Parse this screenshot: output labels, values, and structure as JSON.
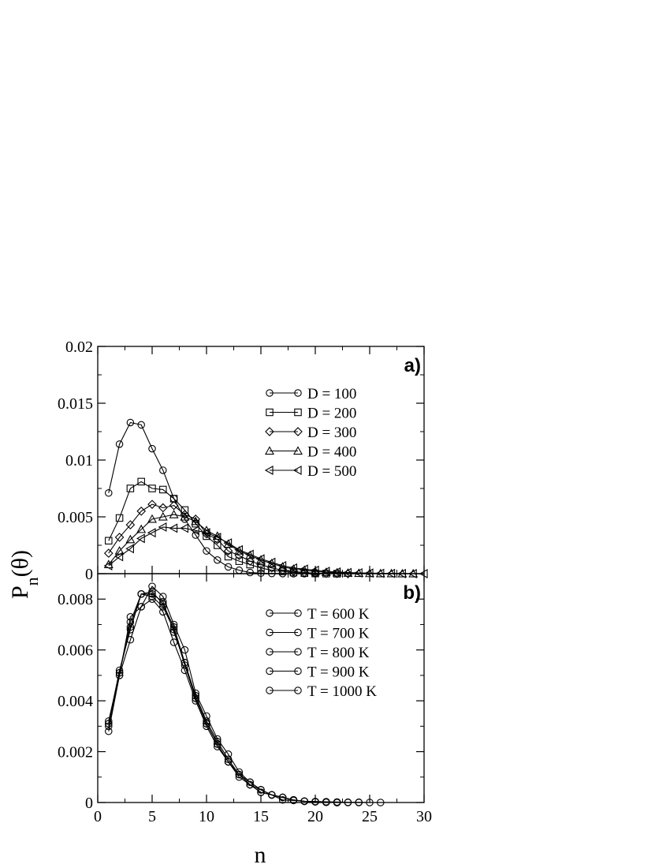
{
  "chart_data": [
    {
      "type": "line",
      "panel_label": "a)",
      "xlabel": "n",
      "ylabel": "P_n(θ)",
      "xlim": [
        0,
        30
      ],
      "ylim": [
        0,
        0.02
      ],
      "x_ticks": [
        0,
        5,
        10,
        15,
        20,
        25,
        30
      ],
      "x_tick_labels": [
        "",
        "",
        "",
        "",
        "",
        "",
        ""
      ],
      "y_ticks": [
        0,
        0.005,
        0.01,
        0.015,
        0.02
      ],
      "y_tick_labels": [
        "0",
        "0.005",
        "0.01",
        "0.015",
        "0.02"
      ],
      "grid": false,
      "legend_position": "top-right",
      "series": [
        {
          "name": "D = 100",
          "marker": "circle",
          "x": [
            1,
            2,
            3,
            4,
            5,
            6,
            7,
            8,
            9,
            10,
            11,
            12,
            13,
            14,
            15,
            16,
            17,
            18,
            19,
            20
          ],
          "y": [
            0.0071,
            0.0114,
            0.0133,
            0.0131,
            0.011,
            0.0091,
            0.0066,
            0.0048,
            0.0034,
            0.002,
            0.0012,
            0.0006,
            0.0003,
            0.0001,
            5e-05,
            2e-05,
            1e-05,
            0,
            0,
            0
          ]
        },
        {
          "name": "D = 200",
          "marker": "square",
          "x": [
            1,
            2,
            3,
            4,
            5,
            6,
            7,
            8,
            9,
            10,
            11,
            12,
            13,
            14,
            15,
            16,
            17,
            18,
            19,
            20,
            21,
            22
          ],
          "y": [
            0.0029,
            0.0049,
            0.0075,
            0.0081,
            0.0075,
            0.0074,
            0.0066,
            0.0056,
            0.0044,
            0.0033,
            0.0025,
            0.0015,
            0.0011,
            0.0008,
            0.0005,
            0.0003,
            0.0002,
            0.0001,
            5e-05,
            2e-05,
            1e-05,
            0
          ]
        },
        {
          "name": "D = 300",
          "marker": "diamond",
          "x": [
            1,
            2,
            3,
            4,
            5,
            6,
            7,
            8,
            9,
            10,
            11,
            12,
            13,
            14,
            15,
            16,
            17,
            18,
            19,
            20,
            21,
            22,
            23
          ],
          "y": [
            0.0018,
            0.0032,
            0.0043,
            0.0055,
            0.0061,
            0.0058,
            0.006,
            0.0052,
            0.0048,
            0.0035,
            0.003,
            0.002,
            0.0016,
            0.0011,
            0.0008,
            0.0005,
            0.0003,
            0.0002,
            0.0001,
            5e-05,
            2e-05,
            1e-05,
            0
          ]
        },
        {
          "name": "D = 400",
          "marker": "triangle-up",
          "x": [
            1,
            2,
            3,
            4,
            5,
            6,
            7,
            8,
            9,
            10,
            11,
            12,
            13,
            14,
            15,
            16,
            17,
            18,
            19,
            20,
            21,
            22,
            23,
            24,
            25,
            26,
            27,
            28,
            29
          ],
          "y": [
            0.0008,
            0.002,
            0.003,
            0.0039,
            0.0048,
            0.005,
            0.0052,
            0.005,
            0.0046,
            0.0038,
            0.0033,
            0.0026,
            0.002,
            0.0016,
            0.0012,
            0.0009,
            0.0006,
            0.0004,
            0.0003,
            0.0002,
            0.00012,
            8e-05,
            5e-05,
            3e-05,
            2e-05,
            1e-05,
            1e-05,
            0,
            0
          ]
        },
        {
          "name": "D = 500",
          "marker": "triangle-left",
          "x": [
            1,
            2,
            3,
            4,
            5,
            6,
            7,
            8,
            9,
            10,
            11,
            12,
            13,
            14,
            15,
            16,
            17,
            18,
            19,
            20,
            21,
            22,
            23,
            24,
            25,
            26,
            27,
            28,
            29,
            30
          ],
          "y": [
            0.0007,
            0.0015,
            0.0022,
            0.0031,
            0.0036,
            0.0041,
            0.004,
            0.004,
            0.0038,
            0.0036,
            0.0032,
            0.0027,
            0.0021,
            0.0017,
            0.0013,
            0.001,
            0.0007,
            0.0005,
            0.0004,
            0.0003,
            0.0002,
            0.00015,
            0.0001,
            7e-05,
            5e-05,
            3e-05,
            2e-05,
            1e-05,
            0,
            0
          ]
        }
      ]
    },
    {
      "type": "line",
      "panel_label": "b)",
      "xlabel": "n",
      "ylabel": "P_n(θ)",
      "xlim": [
        0,
        30
      ],
      "ylim": [
        0,
        0.009
      ],
      "x_ticks": [
        0,
        5,
        10,
        15,
        20,
        25,
        30
      ],
      "x_tick_labels": [
        "0",
        "5",
        "10",
        "15",
        "20",
        "25",
        "30"
      ],
      "y_ticks": [
        0,
        0.002,
        0.004,
        0.006,
        0.008
      ],
      "y_tick_labels": [
        "0",
        "0.002",
        "0.004",
        "0.006",
        "0.008"
      ],
      "grid": false,
      "legend_position": "top-right",
      "series": [
        {
          "name": "T = 600 K",
          "marker": "circle",
          "x": [
            1,
            2,
            3,
            4,
            5,
            6,
            7,
            8,
            9,
            10,
            11,
            12,
            13,
            14,
            15,
            16,
            17,
            18,
            19,
            20,
            21,
            22,
            23,
            24,
            25,
            26
          ],
          "y": [
            0.0028,
            0.005,
            0.0064,
            0.0077,
            0.0085,
            0.0081,
            0.007,
            0.006,
            0.0043,
            0.0034,
            0.0025,
            0.0019,
            0.0012,
            0.0008,
            0.0005,
            0.0003,
            0.0002,
            0.0001,
            5e-05,
            4e-05,
            3e-05,
            2e-05,
            1e-05,
            1e-05,
            0,
            0
          ]
        },
        {
          "name": "T = 700 K",
          "marker": "circle",
          "x": [
            1,
            2,
            3,
            4,
            5,
            6,
            7,
            8,
            9,
            10,
            11,
            12,
            13,
            14,
            15,
            16,
            17,
            18,
            19,
            20,
            21,
            22,
            23,
            24
          ],
          "y": [
            0.0031,
            0.0052,
            0.0068,
            0.0082,
            0.0083,
            0.0078,
            0.0069,
            0.0055,
            0.0042,
            0.0032,
            0.0024,
            0.0017,
            0.0011,
            0.0008,
            0.0005,
            0.0003,
            0.0002,
            0.0001,
            5e-05,
            3e-05,
            2e-05,
            1e-05,
            0,
            0
          ]
        },
        {
          "name": "T = 800 K",
          "marker": "circle",
          "x": [
            1,
            2,
            3,
            4,
            5,
            6,
            7,
            8,
            9,
            10,
            11,
            12,
            13,
            14,
            15,
            16,
            17,
            18,
            19,
            20,
            21,
            22
          ],
          "y": [
            0.0032,
            0.0051,
            0.0071,
            0.0082,
            0.0081,
            0.0077,
            0.0068,
            0.0054,
            0.0041,
            0.0031,
            0.0023,
            0.0016,
            0.0011,
            0.0007,
            0.0004,
            0.0003,
            0.0002,
            0.0001,
            5e-05,
            3e-05,
            1e-05,
            0
          ]
        },
        {
          "name": "T = 900 K",
          "marker": "circle",
          "x": [
            1,
            2,
            3,
            4,
            5,
            6,
            7,
            8,
            9,
            10,
            11,
            12,
            13,
            14,
            15,
            16,
            17,
            18,
            19,
            20,
            21,
            22
          ],
          "y": [
            0.003,
            0.005,
            0.0073,
            0.0077,
            0.008,
            0.0075,
            0.0063,
            0.0052,
            0.004,
            0.003,
            0.0022,
            0.0016,
            0.001,
            0.0007,
            0.0004,
            0.0003,
            0.0001,
            8e-05,
            5e-05,
            3e-05,
            1e-05,
            0
          ]
        },
        {
          "name": "T = 1000 K",
          "marker": "circle",
          "x": [
            1,
            2,
            3,
            4,
            5,
            6,
            7,
            8,
            9,
            10,
            11,
            12,
            13,
            14,
            15,
            16,
            17,
            18,
            19,
            20,
            21,
            22
          ],
          "y": [
            0.0031,
            0.0051,
            0.0069,
            0.0082,
            0.0082,
            0.0079,
            0.0067,
            0.0055,
            0.0041,
            0.0031,
            0.0023,
            0.0016,
            0.0011,
            0.0007,
            0.0005,
            0.0003,
            0.0002,
            0.0001,
            5e-05,
            3e-05,
            1e-05,
            0
          ]
        }
      ]
    }
  ]
}
